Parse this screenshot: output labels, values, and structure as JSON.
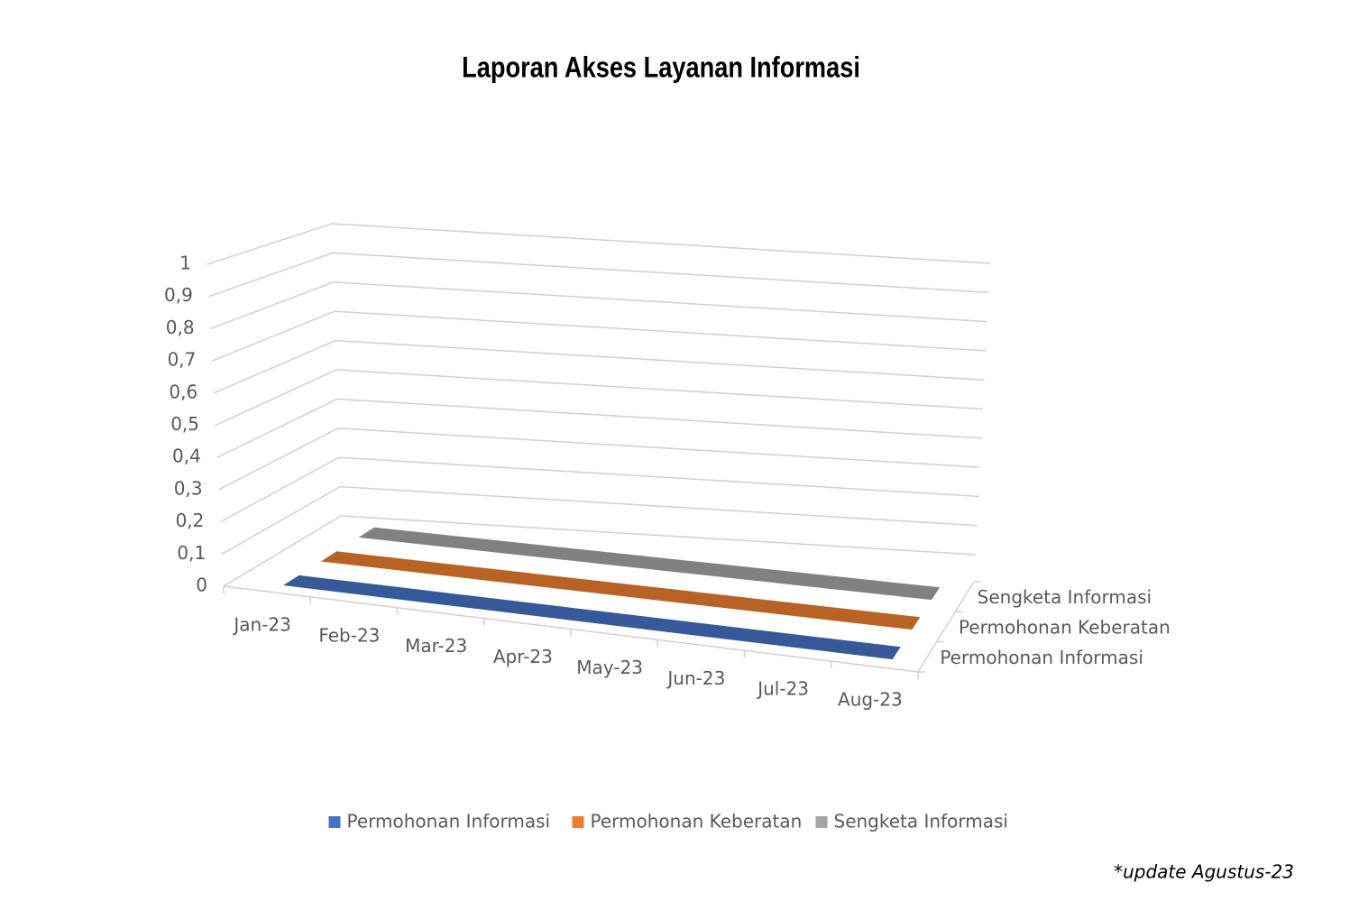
{
  "chart_data": {
    "type": "line3d",
    "title": "Laporan Akses Layanan Informasi",
    "categories": [
      "Jan-23",
      "Feb-23",
      "Mar-23",
      "Apr-23",
      "May-23",
      "Jun-23",
      "Jul-23",
      "Aug-23"
    ],
    "series": [
      {
        "name": "Permohonan Informasi",
        "color": "#4472c4",
        "values": [
          0,
          0,
          0,
          0,
          0,
          0,
          0,
          0
        ]
      },
      {
        "name": "Permohonan Keberatan",
        "color": "#ed7d31",
        "values": [
          0,
          0,
          0,
          0,
          0,
          0,
          0,
          0
        ]
      },
      {
        "name": "Sengketa Informasi",
        "color": "#a5a5a5",
        "values": [
          0,
          0,
          0,
          0,
          0,
          0,
          0,
          0
        ]
      }
    ],
    "ylim": [
      0,
      1
    ],
    "yticks": [
      0,
      {
        "value": 0.1,
        "label": "0,1"
      },
      {
        "value": 0.2,
        "label": "0,2"
      },
      {
        "value": 0.3,
        "label": "0,3"
      },
      {
        "value": 0.4,
        "label": "0,4"
      },
      {
        "value": 0.5,
        "label": "0,5"
      },
      {
        "value": 0.6,
        "label": "0,6"
      },
      {
        "value": 0.7,
        "label": "0,7"
      },
      {
        "value": 0.8,
        "label": "0,8"
      },
      {
        "value": 0.9,
        "label": "0,9"
      },
      1
    ],
    "grid": true,
    "legend": "bottom",
    "annotation": "*update Agustus-23"
  }
}
